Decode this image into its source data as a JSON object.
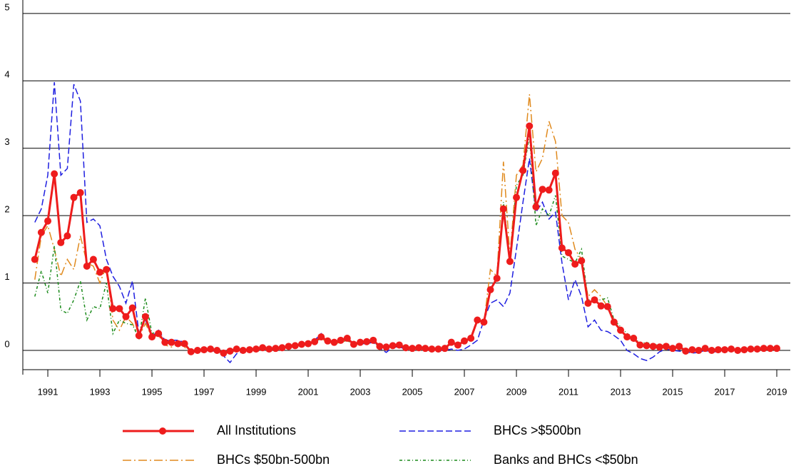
{
  "chart_data": {
    "type": "line",
    "x": [
      1990.5,
      1990.75,
      1991,
      1991.25,
      1991.5,
      1991.75,
      1992,
      1992.25,
      1992.5,
      1992.75,
      1993,
      1993.25,
      1993.5,
      1993.75,
      1994,
      1994.25,
      1994.5,
      1994.75,
      1995,
      1995.25,
      1995.5,
      1995.75,
      1996,
      1996.25,
      1996.5,
      1996.75,
      1997,
      1997.25,
      1997.5,
      1997.75,
      1998,
      1998.25,
      1998.5,
      1998.75,
      1999,
      1999.25,
      1999.5,
      1999.75,
      2000,
      2000.25,
      2000.5,
      2000.75,
      2001,
      2001.25,
      2001.5,
      2001.75,
      2002,
      2002.25,
      2002.5,
      2002.75,
      2003,
      2003.25,
      2003.5,
      2003.75,
      2004,
      2004.25,
      2004.5,
      2004.75,
      2005,
      2005.25,
      2005.5,
      2005.75,
      2006,
      2006.25,
      2006.5,
      2006.75,
      2007,
      2007.25,
      2007.5,
      2007.75,
      2008,
      2008.25,
      2008.5,
      2008.75,
      2009,
      2009.25,
      2009.5,
      2009.75,
      2010,
      2010.25,
      2010.5,
      2010.75,
      2011,
      2011.25,
      2011.5,
      2011.75,
      2012,
      2012.25,
      2012.5,
      2012.75,
      2013,
      2013.25,
      2013.5,
      2013.75,
      2014,
      2014.25,
      2014.5,
      2014.75,
      2015,
      2015.25,
      2015.5,
      2015.75,
      2016,
      2016.25,
      2016.5,
      2016.75,
      2017,
      2017.25,
      2017.5,
      2017.75,
      2018,
      2018.25,
      2018.5,
      2018.75,
      2019
    ],
    "series": [
      {
        "name": "All Institutions",
        "color": "#ee1c1c",
        "style": "solid-marker",
        "values": [
          1.35,
          1.75,
          1.92,
          2.62,
          1.6,
          1.7,
          2.27,
          2.34,
          1.25,
          1.35,
          1.16,
          1.2,
          0.62,
          0.62,
          0.5,
          0.63,
          0.22,
          0.5,
          0.2,
          0.25,
          0.12,
          0.12,
          0.1,
          0.1,
          -0.02,
          0.0,
          0.01,
          0.02,
          0.0,
          -0.04,
          -0.01,
          0.02,
          0.0,
          0.01,
          0.02,
          0.04,
          0.02,
          0.03,
          0.04,
          0.06,
          0.07,
          0.09,
          0.1,
          0.13,
          0.2,
          0.14,
          0.12,
          0.15,
          0.18,
          0.09,
          0.12,
          0.13,
          0.15,
          0.06,
          0.05,
          0.07,
          0.08,
          0.04,
          0.03,
          0.04,
          0.03,
          0.02,
          0.02,
          0.03,
          0.12,
          0.08,
          0.14,
          0.18,
          0.45,
          0.42,
          0.9,
          1.07,
          2.1,
          1.32,
          2.27,
          2.67,
          3.33,
          2.13,
          2.39,
          2.38,
          2.63,
          1.52,
          1.45,
          1.28,
          1.33,
          0.7,
          0.75,
          0.66,
          0.65,
          0.42,
          0.3,
          0.2,
          0.18,
          0.08,
          0.07,
          0.06,
          0.05,
          0.06,
          0.03,
          0.06,
          -0.01,
          0.01,
          0.0,
          0.03,
          0.0,
          0.01,
          0.01,
          0.02,
          0.0,
          0.01,
          0.02,
          0.02,
          0.03,
          0.03,
          0.03
        ]
      },
      {
        "name": "BHCs >$500bn",
        "color": "#1f1fe0",
        "style": "dash",
        "values": [
          1.9,
          2.1,
          2.6,
          3.98,
          2.6,
          2.7,
          3.95,
          3.7,
          1.9,
          1.95,
          1.85,
          1.35,
          1.1,
          0.95,
          0.7,
          1.03,
          0.25,
          0.45,
          0.2,
          0.3,
          0.15,
          0.15,
          0.15,
          0.12,
          -0.03,
          -0.02,
          0.0,
          0.0,
          -0.02,
          -0.08,
          -0.18,
          -0.05,
          -0.02,
          0.0,
          0.02,
          0.03,
          0.02,
          0.03,
          0.04,
          0.05,
          0.07,
          0.08,
          0.1,
          0.15,
          0.25,
          0.14,
          0.12,
          0.14,
          0.17,
          0.1,
          0.1,
          0.1,
          0.12,
          0.03,
          -0.03,
          0.05,
          0.05,
          0.02,
          0.02,
          0.03,
          0.02,
          0.0,
          0.0,
          0.0,
          0.02,
          0.0,
          0.02,
          0.08,
          0.15,
          0.45,
          0.7,
          0.75,
          0.65,
          0.85,
          1.5,
          2.2,
          2.85,
          2.05,
          2.2,
          1.95,
          2.05,
          1.3,
          0.75,
          1.05,
          0.8,
          0.35,
          0.45,
          0.3,
          0.28,
          0.22,
          0.15,
          0.0,
          -0.05,
          -0.12,
          -0.15,
          -0.1,
          -0.02,
          0.02,
          0.0,
          -0.01,
          -0.02,
          -0.04,
          -0.03,
          0.0,
          -0.03,
          -0.01,
          0.0,
          0.01,
          0.0,
          0.01,
          0.01,
          0.02,
          0.03,
          0.03,
          0.04
        ]
      },
      {
        "name": "BHCs $50bn-500bn",
        "color": "#e08a1e",
        "style": "dashdot",
        "values": [
          1.05,
          1.7,
          1.85,
          1.5,
          1.1,
          1.35,
          1.2,
          1.7,
          1.3,
          1.25,
          1.0,
          1.25,
          0.45,
          0.3,
          0.5,
          0.4,
          0.2,
          0.4,
          0.2,
          0.22,
          0.08,
          0.05,
          0.1,
          0.05,
          -0.05,
          0.0,
          0.0,
          0.02,
          0.0,
          -0.05,
          -0.03,
          0.0,
          0.0,
          0.02,
          0.02,
          0.04,
          0.02,
          0.03,
          0.04,
          0.05,
          0.07,
          0.08,
          0.1,
          0.12,
          0.18,
          0.12,
          0.1,
          0.12,
          0.15,
          0.08,
          0.1,
          0.12,
          0.13,
          0.05,
          0.05,
          0.06,
          0.07,
          0.03,
          0.03,
          0.03,
          0.02,
          0.02,
          0.02,
          0.03,
          0.1,
          0.08,
          0.13,
          0.2,
          0.48,
          0.4,
          1.2,
          1.1,
          2.8,
          1.4,
          2.6,
          2.75,
          3.8,
          2.65,
          2.85,
          3.4,
          3.1,
          2.0,
          1.9,
          1.5,
          1.35,
          0.8,
          0.9,
          0.8,
          0.65,
          0.4,
          0.3,
          0.22,
          0.18,
          0.1,
          0.08,
          0.06,
          0.05,
          0.05,
          0.03,
          0.05,
          -0.01,
          0.0,
          0.0,
          0.02,
          0.0,
          0.0,
          0.01,
          0.02,
          0.0,
          0.01,
          0.02,
          0.02,
          0.03,
          0.03,
          0.03
        ]
      },
      {
        "name": "Banks and BHCs <$50bn",
        "color": "#1a8a1a",
        "style": "dashdotdot",
        "values": [
          0.8,
          1.18,
          0.85,
          1.55,
          0.6,
          0.55,
          0.75,
          1.03,
          0.45,
          0.65,
          0.62,
          1.0,
          0.25,
          0.45,
          0.4,
          0.38,
          0.18,
          0.78,
          0.25,
          0.28,
          0.12,
          0.15,
          0.1,
          0.08,
          -0.03,
          0.0,
          0.0,
          0.02,
          0.0,
          -0.03,
          -0.02,
          0.0,
          0.0,
          0.02,
          0.02,
          0.04,
          0.02,
          0.03,
          0.04,
          0.05,
          0.07,
          0.08,
          0.1,
          0.12,
          0.18,
          0.12,
          0.1,
          0.12,
          0.15,
          0.08,
          0.1,
          0.12,
          0.13,
          0.05,
          0.05,
          0.06,
          0.07,
          0.03,
          0.03,
          0.03,
          0.02,
          0.02,
          0.02,
          0.03,
          0.1,
          0.08,
          0.13,
          0.18,
          0.45,
          0.42,
          0.9,
          1.05,
          2.2,
          1.35,
          2.45,
          2.6,
          3.2,
          1.85,
          2.1,
          2.0,
          2.3,
          1.4,
          1.35,
          1.3,
          1.5,
          0.75,
          0.75,
          0.75,
          0.78,
          0.45,
          0.35,
          0.25,
          0.2,
          0.1,
          0.12,
          0.08,
          0.09,
          0.05,
          0.05,
          0.08,
          0.0,
          0.02,
          0.0,
          0.02,
          0.0,
          0.0,
          0.01,
          0.02,
          0.0,
          0.01,
          0.02,
          0.02,
          0.03,
          0.03,
          0.03
        ]
      }
    ],
    "xlim": [
      1990.04,
      2019.52
    ],
    "xticks": [
      1991,
      1993,
      1995,
      1997,
      1999,
      2001,
      2003,
      2005,
      2007,
      2009,
      2011,
      2013,
      2015,
      2017,
      2019
    ],
    "ylim": [
      -0.36,
      5.2
    ],
    "yticks": [
      0,
      1,
      2,
      3,
      4,
      5
    ],
    "grid": true
  }
}
